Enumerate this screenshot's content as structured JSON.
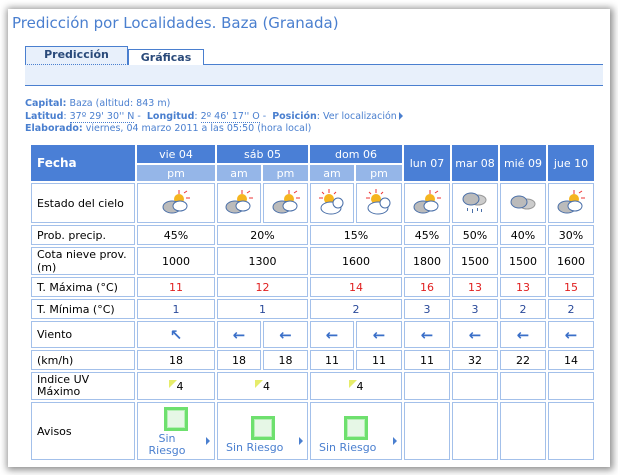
{
  "title": "Predicción por Localidades. Baza (Granada)",
  "tabs": [
    {
      "label": "Predicción",
      "active": true
    },
    {
      "label": "Gráficas"
    }
  ],
  "info": {
    "capital_label": "Capital:",
    "capital_value": "Baza (altitud: 843 m)",
    "latitud_label": "Latitud",
    "latitud_value": "37º 29' 30'' N",
    "longitud_label": "Longitud",
    "longitud_value": "2º 46' 17'' O",
    "posicion_label": "Posición",
    "posicion_link": "Ver localización",
    "elaborado_label": "Elaborado:",
    "elaborado_value": "viernes, 04 marzo 2011 a las 05:50 (hora local)"
  },
  "table": {
    "fecha_label": "Fecha",
    "days": [
      "vie 04",
      "sáb 05",
      "dom 06",
      "lun 07",
      "mar 08",
      "mié 09",
      "jue 10"
    ],
    "periods": [
      "pm",
      "am",
      "pm",
      "am",
      "pm"
    ],
    "row_labels": {
      "cielo": "Estado del cielo",
      "prob": "Prob. precip.",
      "cota": "Cota nieve prov.(m)",
      "tmax": "T. Máxima (°C)",
      "tmin": "T. Mínima (°C)",
      "viento": "Viento",
      "kmh": "(km/h)",
      "uv": "Indice UV Máximo",
      "avisos": "Avisos"
    },
    "sky_icons": [
      "partly-cloudy",
      "partly-cloudy",
      "partly-cloudy",
      "sun-cloud",
      "sun-cloud",
      "partly-cloudy",
      "rain",
      "cloudy",
      "partly-cloudy"
    ],
    "prob": [
      "45%",
      "20%",
      "15%",
      "45%",
      "50%",
      "40%",
      "30%"
    ],
    "cota": [
      "1000",
      "1300",
      "1600",
      "1800",
      "1500",
      "1500",
      "1600"
    ],
    "tmax": [
      "11",
      "12",
      "14",
      "16",
      "13",
      "13",
      "15"
    ],
    "tmin": [
      "1",
      "1",
      "2",
      "3",
      "3",
      "2",
      "2"
    ],
    "wind_dir": [
      "NW",
      "E",
      "E",
      "E",
      "E",
      "E",
      "E",
      "E",
      "E"
    ],
    "kmh": [
      "18",
      "18",
      "18",
      "11",
      "11",
      "11",
      "32",
      "22",
      "14"
    ],
    "uv": [
      "4",
      "4",
      "4"
    ],
    "avisos": [
      "Sin Riesgo",
      "Sin Riesgo",
      "Sin Riesgo"
    ],
    "colors": {
      "header": "#4a7fd6",
      "subheader": "#95b6e8",
      "tmax": "#e02020",
      "tmin": "#2a4a9a"
    }
  }
}
